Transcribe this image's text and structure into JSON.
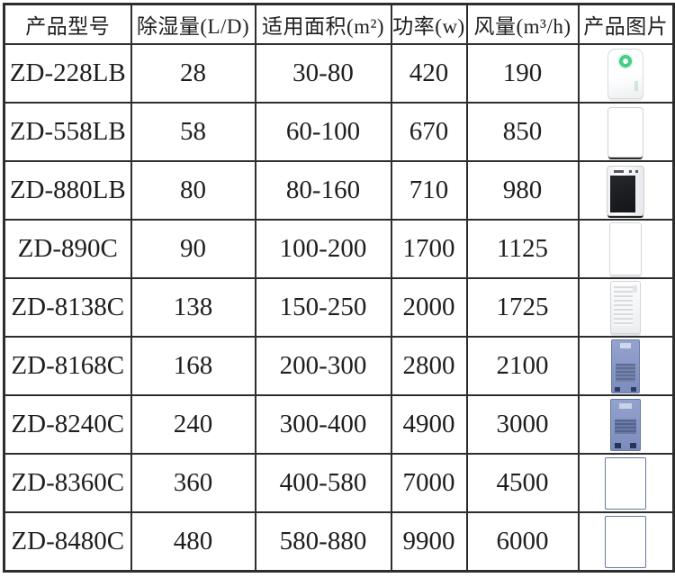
{
  "colors": {
    "background": "#ffffff",
    "border": "#2e2e2e",
    "text": "#1e1e1e",
    "green_ring": "#45cf87",
    "blue_cabinet": "#8193c9"
  },
  "chart_data": {
    "type": "table",
    "title": "",
    "columns": [
      {
        "key": "model",
        "label": "产品型号"
      },
      {
        "key": "capacity",
        "label": "除湿量(L/D)"
      },
      {
        "key": "area",
        "label": "适用面积(m²)"
      },
      {
        "key": "power",
        "label": "功率(w)"
      },
      {
        "key": "airflow",
        "label": "风量(m³/h)"
      },
      {
        "key": "image",
        "label": "产品图片"
      }
    ],
    "rows": [
      {
        "model": "ZD-228LB",
        "capacity": "28",
        "area": "30-80",
        "power": "420",
        "airflow": "190",
        "image_icon": "white-compact-green-ring"
      },
      {
        "model": "ZD-558LB",
        "capacity": "58",
        "area": "60-100",
        "power": "670",
        "airflow": "850",
        "image_icon": "white-black-top"
      },
      {
        "model": "ZD-880LB",
        "capacity": "80",
        "area": "80-160",
        "power": "710",
        "airflow": "980",
        "image_icon": "black-front-panel"
      },
      {
        "model": "ZD-890C",
        "capacity": "90",
        "area": "100-200",
        "power": "1700",
        "airflow": "1125",
        "image_icon": "white-louvered-blue-screen"
      },
      {
        "model": "ZD-8138C",
        "capacity": "138",
        "area": "150-250",
        "power": "2000",
        "airflow": "1725",
        "image_icon": "white-louvered"
      },
      {
        "model": "ZD-8168C",
        "capacity": "168",
        "area": "200-300",
        "power": "2800",
        "airflow": "2100",
        "image_icon": "blue-cabinet-slim"
      },
      {
        "model": "ZD-8240C",
        "capacity": "240",
        "area": "300-400",
        "power": "4900",
        "airflow": "3000",
        "image_icon": "blue-cabinet"
      },
      {
        "model": "ZD-8360C",
        "capacity": "360",
        "area": "400-580",
        "power": "7000",
        "airflow": "4500",
        "image_icon": "blue-cabinet-wide"
      },
      {
        "model": "ZD-8480C",
        "capacity": "480",
        "area": "580-880",
        "power": "9900",
        "airflow": "6000",
        "image_icon": "blue-cabinet-wide"
      }
    ]
  }
}
